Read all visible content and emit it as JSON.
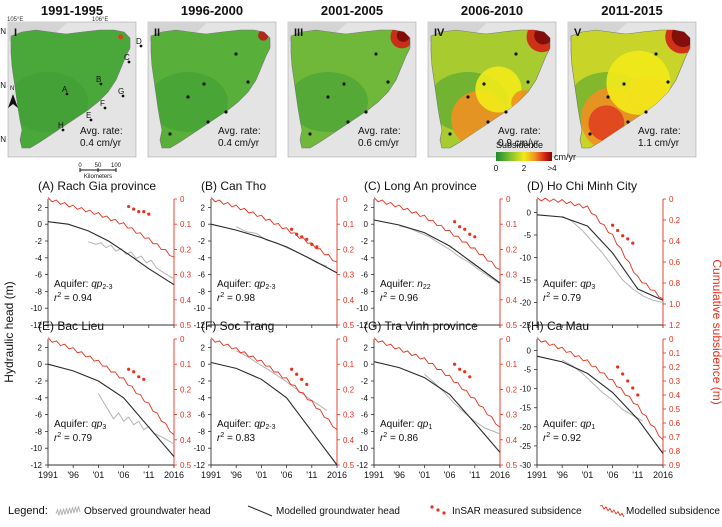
{
  "maps": [
    {
      "period": "1991-1995",
      "roman": "I",
      "avg_label": "Avg. rate:",
      "avg_value": "0.4 cm/yr",
      "level": 0.1
    },
    {
      "period": "1996-2000",
      "roman": "II",
      "avg_label": "Avg. rate:",
      "avg_value": "0.4 cm/yr",
      "level": 0.15
    },
    {
      "period": "2001-2005",
      "roman": "III",
      "avg_label": "Avg. rate:",
      "avg_value": "0.6 cm/yr",
      "level": 0.35
    },
    {
      "period": "2006-2010",
      "roman": "IV",
      "avg_label": "Avg. rate:",
      "avg_value": "0.9 cm/yr",
      "level": 0.65
    },
    {
      "period": "2011-2015",
      "roman": "V",
      "avg_label": "Avg. rate:",
      "avg_value": "1.1 cm/yr",
      "level": 0.9
    }
  ],
  "map1_annotations": {
    "lon_labels": [
      "105°E",
      "106°E"
    ],
    "lat_labels": [
      "11°N",
      "10°N",
      "9°N"
    ],
    "north": "N",
    "site_letters": [
      "A",
      "B",
      "C",
      "D",
      "E",
      "F",
      "G",
      "H"
    ],
    "scale_ticks": [
      "0",
      "50",
      "100"
    ],
    "scale_unit": "Kilometers"
  },
  "colorbar": {
    "title": "Subsidence",
    "unit": "cm/yr",
    "ticks": [
      "0",
      "2",
      ">4"
    ],
    "colors": [
      "#1d8a2e",
      "#7cc030",
      "#f2ea1a",
      "#f09020",
      "#d02015",
      "#7a0a0a"
    ]
  },
  "axes": {
    "ylabel_left": "Hydraulic head (m)",
    "ylabel_right": "Cumulative subsidence (m)",
    "x_ticks": [
      "1991",
      "'96",
      "'01",
      "'06",
      "'11",
      "2016"
    ]
  },
  "legend": {
    "title": "Legend:",
    "observed": "Observed groundwater head",
    "modelled_head": "Modelled groundwater head",
    "insar": "InSAR measured subsidence",
    "modelled_sub": "Modelled subsidence"
  },
  "colors": {
    "observed": "#b4b4b4",
    "modelled_head": "#2a2a2a",
    "subsidence": "#e8301c",
    "axis_right": "#e8301c"
  },
  "chart_data": [
    {
      "type": "line",
      "title": "(A) Rach Gia province",
      "aquifer_label": "Aquifer:",
      "aquifer": "qp",
      "aquifer_sub": "2-3",
      "r2_value": "= 0.94",
      "left_ticks": [
        "2",
        "0",
        "-2",
        "-4",
        "-6",
        "-8",
        "-10",
        "-12"
      ],
      "left_range": [
        -12,
        3
      ],
      "right_ticks": [
        "0",
        "0.1",
        "0.2",
        "0.3",
        "0.4",
        "0.5"
      ],
      "right_range": [
        0,
        0.5
      ],
      "modelled_head": {
        "x": [
          1991,
          1995,
          1999,
          2003,
          2007,
          2011,
          2016
        ],
        "y": [
          0.3,
          0,
          -0.8,
          -2,
          -3.6,
          -5.3,
          -7.2
        ]
      },
      "observed_head": {
        "x": [
          1999,
          2000.5,
          2001.5,
          2002.5,
          2003.5,
          2004.5,
          2005.5,
          2006.5,
          2007.5,
          2008.5,
          2009.5,
          2010.5,
          2011.5,
          2012.5,
          2014,
          2016
        ],
        "y": [
          -2.1,
          -2.4,
          -2.2,
          -2.8,
          -2.5,
          -3.2,
          -2.9,
          -3.6,
          -3.3,
          -4.1,
          -3.8,
          -4.6,
          -4.3,
          -5.2,
          -5.8,
          -6.5
        ]
      },
      "modelled_subsidence": {
        "x": [
          1991,
          1996,
          2001,
          2006,
          2011,
          2016
        ],
        "y": [
          0,
          0.03,
          0.06,
          0.1,
          0.16,
          0.23
        ]
      },
      "insar": {
        "x": [
          2007,
          2008,
          2009,
          2010,
          2011
        ],
        "y": [
          0.03,
          0.04,
          0.05,
          0.05,
          0.06
        ]
      }
    },
    {
      "type": "line",
      "title": "(B) Can Tho",
      "aquifer_label": "Aquifer:",
      "aquifer": "qp",
      "aquifer_sub": "2-3",
      "r2_value": "= 0.98",
      "left_ticks": [
        "2",
        "0",
        "-2",
        "-4",
        "-6",
        "-8",
        "-10",
        "-12"
      ],
      "left_range": [
        -12,
        3
      ],
      "right_ticks": [
        "0",
        "0.1",
        "0.2",
        "0.3",
        "0.4",
        "0.5"
      ],
      "right_range": [
        0,
        0.5
      ],
      "modelled_head": {
        "x": [
          1991,
          1996,
          2001,
          2006,
          2011,
          2016
        ],
        "y": [
          0,
          -0.7,
          -1.6,
          -2.7,
          -4.2,
          -5.8
        ]
      },
      "observed_head": {
        "x": [
          1996,
          1998,
          2000,
          2002,
          2004,
          2006,
          2008,
          2010,
          2012,
          2014
        ],
        "y": [
          -0.3,
          -0.9,
          -1.1,
          -1.9,
          -2.2,
          -2.8,
          -3.3,
          -3.9,
          -4.6,
          -5.0
        ]
      },
      "modelled_subsidence": {
        "x": [
          1991,
          1996,
          2001,
          2006,
          2011,
          2016
        ],
        "y": [
          0,
          0.03,
          0.07,
          0.12,
          0.18,
          0.25
        ]
      },
      "insar": {
        "x": [
          2007,
          2008,
          2009,
          2010,
          2011,
          2012
        ],
        "y": [
          0.12,
          0.14,
          0.15,
          0.16,
          0.18,
          0.19
        ]
      }
    },
    {
      "type": "line",
      "title": "(C) Long An province",
      "aquifer_label": "Aquifer:",
      "aquifer": "n",
      "aquifer_sub": "22",
      "r2_value": "= 0.96",
      "left_ticks": [
        "2",
        "0",
        "-2",
        "-4",
        "-6",
        "-8",
        "-10",
        "-12"
      ],
      "left_range": [
        -12,
        3
      ],
      "right_ticks": [
        "0",
        "0.1",
        "0.2",
        "0.3",
        "0.4",
        "0.5"
      ],
      "right_range": [
        0,
        0.5
      ],
      "modelled_head": {
        "x": [
          1991,
          1996,
          2001,
          2006,
          2011,
          2016
        ],
        "y": [
          0.5,
          -0.1,
          -1,
          -2.6,
          -4.8,
          -7
        ]
      },
      "observed_head": {
        "x": [
          1996,
          1998,
          2000,
          2002,
          2004,
          2006,
          2008,
          2010,
          2012,
          2014,
          2016
        ],
        "y": [
          -0.2,
          -0.5,
          -1,
          -1.5,
          -2.3,
          -3.0,
          -3.9,
          -4.6,
          -5.5,
          -6.3,
          -7.1
        ]
      },
      "modelled_subsidence": {
        "x": [
          1991,
          1996,
          2001,
          2006,
          2011,
          2016
        ],
        "y": [
          0,
          0.03,
          0.07,
          0.13,
          0.2,
          0.28
        ]
      },
      "insar": {
        "x": [
          2007,
          2008,
          2009,
          2010,
          2011
        ],
        "y": [
          0.09,
          0.11,
          0.12,
          0.14,
          0.15
        ]
      }
    },
    {
      "type": "line",
      "title": "(D) Ho Chi Minh City",
      "aquifer_label": "Aquifer:",
      "aquifer": "qp",
      "aquifer_sub": "3",
      "r2_value": "= 0.79",
      "left_ticks": [
        "0",
        "-5",
        "-10",
        "-15",
        "-20",
        "-25"
      ],
      "left_range": [
        -25,
        3
      ],
      "right_ticks": [
        "0",
        "0.2",
        "0.4",
        "0.6",
        "0.8",
        "1.0",
        "1.2"
      ],
      "right_range": [
        0,
        1.2
      ],
      "modelled_head": {
        "x": [
          1991,
          1996,
          2001,
          2006,
          2011,
          2016
        ],
        "y": [
          -0.5,
          -1,
          -3,
          -9,
          -17,
          -19.5
        ]
      },
      "observed_head": {
        "x": [
          1996,
          1998,
          2000,
          2002,
          2004,
          2006,
          2008,
          2010,
          2012,
          2014,
          2016
        ],
        "y": [
          -0.8,
          -2,
          -4,
          -6.5,
          -9,
          -12,
          -15,
          -17,
          -18.5,
          -19.5,
          -20
        ]
      },
      "modelled_subsidence": {
        "x": [
          1991,
          1996,
          2001,
          2006,
          2011,
          2016
        ],
        "y": [
          0,
          0.02,
          0.08,
          0.35,
          0.75,
          0.95
        ]
      },
      "insar": {
        "x": [
          2006,
          2007,
          2008,
          2009,
          2010
        ],
        "y": [
          0.25,
          0.3,
          0.35,
          0.38,
          0.42
        ]
      }
    },
    {
      "type": "line",
      "title": "(E) Bac Lieu",
      "aquifer_label": "Aquifer:",
      "aquifer": "qp",
      "aquifer_sub": "3",
      "r2_value": "= 0.79",
      "left_ticks": [
        "2",
        "0",
        "-2",
        "-4",
        "-6",
        "-8",
        "-10",
        "-12"
      ],
      "left_range": [
        -12,
        3
      ],
      "right_ticks": [
        "0",
        "0.1",
        "0.2",
        "0.3",
        "0.4",
        "0.5"
      ],
      "right_range": [
        0,
        0.5
      ],
      "modelled_head": {
        "x": [
          1991,
          1996,
          2001,
          2006,
          2011,
          2016
        ],
        "y": [
          0,
          -0.8,
          -2,
          -4,
          -7.5,
          -11
        ]
      },
      "observed_head": {
        "x": [
          2001,
          2002,
          2003,
          2004,
          2005,
          2006,
          2007,
          2008,
          2009,
          2010,
          2011,
          2012,
          2014,
          2016
        ],
        "y": [
          -3.5,
          -4.5,
          -5.5,
          -6.5,
          -5.8,
          -6.8,
          -6.3,
          -7.2,
          -6.8,
          -7.8,
          -7.4,
          -8.2,
          -8.8,
          -9.5
        ]
      },
      "modelled_subsidence": {
        "x": [
          1991,
          1996,
          2001,
          2006,
          2011,
          2016
        ],
        "y": [
          0,
          0.04,
          0.09,
          0.16,
          0.26,
          0.38
        ]
      },
      "insar": {
        "x": [
          2007,
          2008,
          2009,
          2010
        ],
        "y": [
          0.12,
          0.13,
          0.15,
          0.16
        ]
      }
    },
    {
      "type": "line",
      "title": "(F) Soc Trang",
      "aquifer_label": "Aquifer:",
      "aquifer": "qp",
      "aquifer_sub": "2-3",
      "r2_value": "= 0.83",
      "left_ticks": [
        "2",
        "0",
        "-2",
        "-4",
        "-6",
        "-8",
        "-10",
        "-12"
      ],
      "left_range": [
        -12,
        3
      ],
      "right_ticks": [
        "0",
        "0.1",
        "0.2",
        "0.3",
        "0.4",
        "0.5"
      ],
      "right_range": [
        0,
        0.5
      ],
      "modelled_head": {
        "x": [
          1991,
          1996,
          2001,
          2006,
          2011,
          2016
        ],
        "y": [
          0.2,
          -0.5,
          -1.8,
          -4,
          -8,
          -12
        ]
      },
      "observed_head": {
        "x": [
          1996,
          1998,
          2000,
          2002,
          2004,
          2006,
          2008,
          2010,
          2012,
          2014
        ],
        "y": [
          1.6,
          1.0,
          0.2,
          -0.5,
          -1.3,
          -2.1,
          -3.0,
          -3.9,
          -4.7,
          -5.5
        ]
      },
      "modelled_subsidence": {
        "x": [
          1991,
          1996,
          2001,
          2006,
          2011,
          2016
        ],
        "y": [
          0,
          0.04,
          0.09,
          0.16,
          0.25,
          0.36
        ]
      },
      "insar": {
        "x": [
          2007,
          2008,
          2009,
          2010
        ],
        "y": [
          0.12,
          0.14,
          0.16,
          0.18
        ]
      }
    },
    {
      "type": "line",
      "title": "(G) Tra Vinh province",
      "aquifer_label": "Aquifer:",
      "aquifer": "qp",
      "aquifer_sub": "1",
      "r2_value": "= 0.86",
      "left_ticks": [
        "2",
        "0",
        "-2",
        "-4",
        "-6",
        "-8",
        "-10",
        "-12"
      ],
      "left_range": [
        -12,
        3
      ],
      "right_ticks": [
        "0",
        "0.1",
        "0.2",
        "0.3",
        "0.4",
        "0.5"
      ],
      "right_range": [
        0,
        0.5
      ],
      "modelled_head": {
        "x": [
          1991,
          1996,
          2001,
          2006,
          2011,
          2016
        ],
        "y": [
          0.3,
          -0.4,
          -1.6,
          -3.6,
          -7,
          -10.5
        ]
      },
      "observed_head": {
        "x": [
          2001,
          2003,
          2005,
          2007,
          2009,
          2011,
          2013,
          2016
        ],
        "y": [
          -1.2,
          -2.2,
          -3.4,
          -4.7,
          -5.8,
          -6.8,
          -7.6,
          -8.3
        ]
      },
      "modelled_subsidence": {
        "x": [
          1991,
          1996,
          2001,
          2006,
          2011,
          2016
        ],
        "y": [
          0,
          0.04,
          0.08,
          0.15,
          0.24,
          0.35
        ]
      },
      "insar": {
        "x": [
          2007,
          2008,
          2009,
          2010
        ],
        "y": [
          0.1,
          0.12,
          0.13,
          0.15
        ]
      }
    },
    {
      "type": "line",
      "title": "(H) Ca Mau",
      "aquifer_label": "Aquifer:",
      "aquifer": "qp",
      "aquifer_sub": "1",
      "r2_value": "= 0.92",
      "left_ticks": [
        "0",
        "-5",
        "-10",
        "-15",
        "-20",
        "-25",
        "-30"
      ],
      "left_range": [
        -30,
        3
      ],
      "right_ticks": [
        "0",
        "0.1",
        "0.2",
        "0.3",
        "0.4",
        "0.5",
        "0.6",
        "0.7",
        "0.8",
        "0.9"
      ],
      "right_range": [
        0,
        0.9
      ],
      "modelled_head": {
        "x": [
          1991,
          1996,
          2001,
          2006,
          2011,
          2016
        ],
        "y": [
          -1.5,
          -3,
          -6,
          -11,
          -18,
          -27
        ]
      },
      "observed_head": {
        "x": [
          1996,
          1998,
          2000,
          2002,
          2004,
          2006,
          2008,
          2010,
          2012
        ],
        "y": [
          -2.5,
          -4,
          -6,
          -8.5,
          -11,
          -13,
          -15.5,
          -17,
          -18.5
        ]
      },
      "modelled_subsidence": {
        "x": [
          1991,
          1996,
          2001,
          2006,
          2011,
          2016
        ],
        "y": [
          0,
          0.07,
          0.16,
          0.3,
          0.48,
          0.72
        ]
      },
      "insar": {
        "x": [
          2007,
          2008,
          2009,
          2010,
          2011
        ],
        "y": [
          0.2,
          0.25,
          0.3,
          0.35,
          0.4
        ]
      }
    }
  ]
}
